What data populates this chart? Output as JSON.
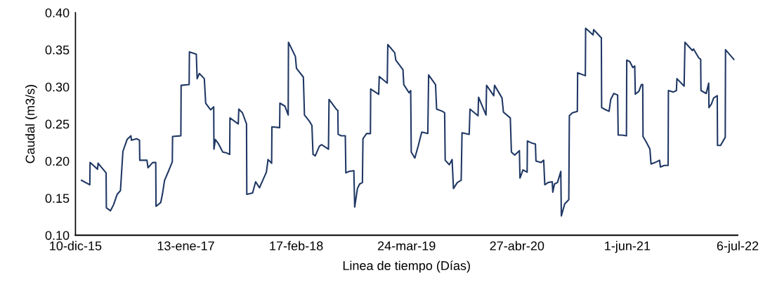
{
  "chart_data": {
    "type": "line",
    "xlabel": "Linea de tiempo (Días)",
    "ylabel": "Caudal (m3/s)",
    "xlim": [
      "2015-12-10",
      "2022-07-06"
    ],
    "xticks": [
      {
        "value": "2015-12-10",
        "label": "10-dic-15"
      },
      {
        "value": "2017-01-13",
        "label": "13-ene-17"
      },
      {
        "value": "2018-02-17",
        "label": "17-feb-18"
      },
      {
        "value": "2019-03-24",
        "label": "24-mar-19"
      },
      {
        "value": "2020-04-27",
        "label": "27-abr-20"
      },
      {
        "value": "2021-06-01",
        "label": "1-jun-21"
      },
      {
        "value": "2022-07-06",
        "label": "6-jul-22"
      }
    ],
    "ylim": [
      0.1,
      0.4
    ],
    "yticks": [
      {
        "value": 0.1,
        "label": "0.10"
      },
      {
        "value": 0.15,
        "label": "0.15"
      },
      {
        "value": 0.2,
        "label": "0.20"
      },
      {
        "value": 0.25,
        "label": "0.25"
      },
      {
        "value": 0.3,
        "label": "0.30"
      },
      {
        "value": 0.35,
        "label": "0.35"
      },
      {
        "value": 0.4,
        "label": "0.40"
      }
    ],
    "grid": false,
    "legend": false,
    "marker": "none",
    "line_style": "solid",
    "series": [
      {
        "color": "#203864",
        "x": [
          "2016-01-01",
          "2016-01-31",
          "2016-02-01",
          "2016-02-28",
          "2016-03-01",
          "2016-03-30",
          "2016-03-31",
          "2016-04-15",
          "2016-04-26",
          "2016-05-09",
          "2016-05-21",
          "2016-05-30",
          "2016-06-14",
          "2016-06-28",
          "2016-06-30",
          "2016-07-19",
          "2016-07-29",
          "2016-07-30",
          "2016-08-25",
          "2016-08-29",
          "2016-09-15",
          "2016-09-26",
          "2016-09-27",
          "2016-10-14",
          "2016-10-20",
          "2016-10-28",
          "2016-11-12",
          "2016-11-25",
          "2016-11-26",
          "2016-12-26",
          "2016-12-27",
          "2017-01-25",
          "2017-01-26",
          "2017-02-20",
          "2017-02-23",
          "2017-03-03",
          "2017-03-21",
          "2017-03-26",
          "2017-04-13",
          "2017-04-24",
          "2017-04-25",
          "2017-04-30",
          "2017-05-10",
          "2017-05-27",
          "2017-06-09",
          "2017-06-21",
          "2017-06-22",
          "2017-07-22",
          "2017-07-24",
          "2017-08-06",
          "2017-08-21",
          "2017-08-22",
          "2017-09-12",
          "2017-09-23",
          "2017-10-07",
          "2017-10-20",
          "2017-11-01",
          "2017-11-07",
          "2017-11-20",
          "2017-11-21",
          "2017-12-19",
          "2017-12-20",
          "2018-01-07",
          "2018-01-19",
          "2018-01-20",
          "2018-02-14",
          "2018-02-18",
          "2018-03-15",
          "2018-03-19",
          "2018-04-05",
          "2018-04-15",
          "2018-04-19",
          "2018-04-27",
          "2018-05-12",
          "2018-05-20",
          "2018-06-14",
          "2018-06-16",
          "2018-07-12",
          "2018-07-18",
          "2018-07-19",
          "2018-07-30",
          "2018-08-14",
          "2018-08-16",
          "2018-08-28",
          "2018-09-14",
          "2018-09-17",
          "2018-09-27",
          "2018-10-05",
          "2018-10-15",
          "2018-10-17",
          "2018-10-30",
          "2018-11-13",
          "2018-11-14",
          "2018-12-13",
          "2018-12-15",
          "2019-01-13",
          "2019-01-15",
          "2019-02-09",
          "2019-02-13",
          "2019-03-11",
          "2019-03-14",
          "2019-04-02",
          "2019-04-08",
          "2019-04-10",
          "2019-04-23",
          "2019-05-05",
          "2019-05-18",
          "2019-06-09",
          "2019-06-12",
          "2019-07-07",
          "2019-07-11",
          "2019-08-01",
          "2019-08-09",
          "2019-08-11",
          "2019-08-26",
          "2019-09-05",
          "2019-09-10",
          "2019-09-24",
          "2019-10-08",
          "2019-10-11",
          "2019-11-06",
          "2019-11-09",
          "2019-12-08",
          "2019-12-10",
          "2020-01-06",
          "2020-01-08",
          "2020-02-03",
          "2020-02-06",
          "2020-03-04",
          "2020-03-09",
          "2020-04-03",
          "2020-04-07",
          "2020-04-19",
          "2020-05-06",
          "2020-05-08",
          "2020-05-19",
          "2020-06-03",
          "2020-06-04",
          "2020-06-21",
          "2020-07-03",
          "2020-07-05",
          "2020-07-23",
          "2020-08-02",
          "2020-08-06",
          "2020-08-18",
          "2020-09-02",
          "2020-09-04",
          "2020-09-10",
          "2020-09-21",
          "2020-10-03",
          "2020-10-05",
          "2020-10-17",
          "2020-11-01",
          "2020-11-03",
          "2020-11-14",
          "2020-12-02",
          "2020-12-03",
          "2020-12-31",
          "2021-01-01",
          "2021-01-28",
          "2021-01-30",
          "2021-02-27",
          "2021-02-28",
          "2021-03-15",
          "2021-03-27",
          "2021-04-02",
          "2021-04-13",
          "2021-04-27",
          "2021-04-29",
          "2021-05-12",
          "2021-05-29",
          "2021-05-30",
          "2021-06-10",
          "2021-06-21",
          "2021-06-28",
          "2021-06-30",
          "2021-07-13",
          "2021-07-22",
          "2021-07-27",
          "2021-07-28",
          "2021-08-11",
          "2021-08-22",
          "2021-08-26",
          "2021-09-10",
          "2021-09-26",
          "2021-09-29",
          "2021-10-13",
          "2021-10-27",
          "2021-10-28",
          "2021-11-15",
          "2021-11-26",
          "2021-11-28",
          "2021-12-24",
          "2021-12-27",
          "2022-01-23",
          "2022-01-27",
          "2022-02-15",
          "2022-02-22",
          "2022-02-23",
          "2022-03-14",
          "2022-03-23",
          "2022-03-24",
          "2022-04-02",
          "2022-04-10",
          "2022-04-23",
          "2022-04-24",
          "2022-05-05",
          "2022-05-22",
          "2022-05-23",
          "2022-06-22"
        ],
        "values": [
          0.174,
          0.168,
          0.198,
          0.189,
          0.197,
          0.184,
          0.137,
          0.133,
          0.141,
          0.155,
          0.16,
          0.213,
          0.229,
          0.234,
          0.228,
          0.23,
          0.228,
          0.201,
          0.201,
          0.191,
          0.198,
          0.198,
          0.139,
          0.144,
          0.155,
          0.174,
          0.187,
          0.199,
          0.233,
          0.234,
          0.302,
          0.303,
          0.347,
          0.344,
          0.311,
          0.318,
          0.311,
          0.278,
          0.269,
          0.273,
          0.216,
          0.229,
          0.224,
          0.212,
          0.211,
          0.209,
          0.258,
          0.25,
          0.27,
          0.265,
          0.25,
          0.155,
          0.157,
          0.172,
          0.164,
          0.175,
          0.185,
          0.202,
          0.197,
          0.246,
          0.245,
          0.278,
          0.274,
          0.262,
          0.36,
          0.341,
          0.325,
          0.313,
          0.262,
          0.254,
          0.248,
          0.209,
          0.207,
          0.22,
          0.222,
          0.216,
          0.283,
          0.27,
          0.268,
          0.236,
          0.234,
          0.234,
          0.184,
          0.186,
          0.187,
          0.138,
          0.163,
          0.169,
          0.171,
          0.23,
          0.237,
          0.237,
          0.297,
          0.29,
          0.314,
          0.305,
          0.357,
          0.346,
          0.336,
          0.323,
          0.303,
          0.292,
          0.295,
          0.212,
          0.204,
          0.22,
          0.239,
          0.237,
          0.316,
          0.303,
          0.27,
          0.267,
          0.265,
          0.201,
          0.195,
          0.202,
          0.163,
          0.171,
          0.174,
          0.238,
          0.236,
          0.27,
          0.261,
          0.286,
          0.262,
          0.302,
          0.288,
          0.302,
          0.285,
          0.266,
          0.258,
          0.212,
          0.208,
          0.214,
          0.177,
          0.188,
          0.185,
          0.227,
          0.224,
          0.223,
          0.2,
          0.198,
          0.201,
          0.168,
          0.171,
          0.172,
          0.158,
          0.169,
          0.171,
          0.186,
          0.126,
          0.142,
          0.148,
          0.261,
          0.265,
          0.267,
          0.319,
          0.315,
          0.379,
          0.37,
          0.377,
          0.366,
          0.272,
          0.269,
          0.267,
          0.283,
          0.291,
          0.289,
          0.235,
          0.235,
          0.234,
          0.336,
          0.334,
          0.326,
          0.328,
          0.29,
          0.294,
          0.303,
          0.303,
          0.233,
          0.224,
          0.216,
          0.196,
          0.198,
          0.201,
          0.192,
          0.194,
          0.194,
          0.295,
          0.293,
          0.295,
          0.311,
          0.301,
          0.36,
          0.349,
          0.351,
          0.339,
          0.337,
          0.295,
          0.291,
          0.305,
          0.272,
          0.277,
          0.285,
          0.288,
          0.221,
          0.221,
          0.232,
          0.35,
          0.337
        ]
      }
    ]
  }
}
